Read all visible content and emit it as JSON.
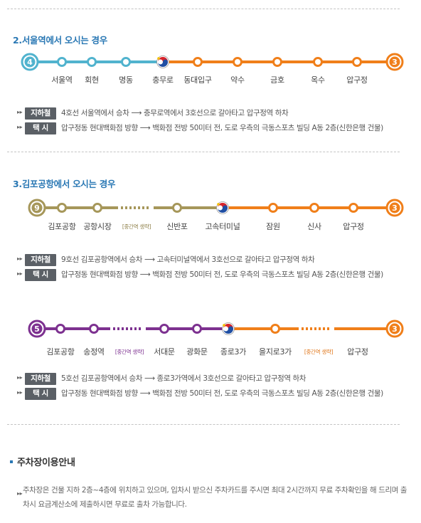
{
  "sections": [
    {
      "title": "2.서울역에서 오시는 경우",
      "start_badge": "4",
      "end_badge": "3",
      "line_colors": [
        "#51b3ce",
        "#f07f1a"
      ],
      "stations": [
        "서울역",
        "회현",
        "명동",
        "충무로",
        "동대입구",
        "약수",
        "금호",
        "옥수",
        "압구정"
      ],
      "mid_labels": [],
      "info": [
        {
          "label": "지하철",
          "text": "4호선 서울역에서 승차 ⟶ 충무로역에서 3호선으로 갈아타고 압구정역 하차"
        },
        {
          "label": "택  시",
          "text": "압구정동 현대백화점 방향 ⟶ 백화점 전방 50미터 전, 도로 우측의 극동스포츠 빌딩 A동 2층(신한은행 건물)"
        }
      ]
    },
    {
      "title": "3.김포공항에서 오시는 경우",
      "start_badge": "9",
      "end_badge": "3",
      "line_colors": [
        "#a6975a",
        "#f07f1a"
      ],
      "stations": [
        "김포공항",
        "공항시장",
        "신반포",
        "고속터미널",
        "잠원",
        "신사",
        "압구정"
      ],
      "mid_labels": [
        "[중간역 생략]"
      ],
      "info": [
        {
          "label": "지하철",
          "text": "9호선 김포공항역에서 승차 ⟶ 고속터미널역에서 3호선으로 갈아타고 압구정역 하차"
        },
        {
          "label": "택  시",
          "text": "압구정동 현대백화점 방향 ⟶ 백화점 전방 50미터 전, 도로 우측의 극동스포츠 빌딩 A동 2층(신한은행 건물)"
        }
      ]
    },
    {
      "title": "",
      "start_badge": "5",
      "end_badge": "3",
      "line_colors": [
        "#7d3190",
        "#f07f1a"
      ],
      "stations": [
        "김포공항",
        "송정역",
        "서대문",
        "광화문",
        "종로3가",
        "을지로3가",
        "압구정"
      ],
      "mid_labels": [
        "[중간역 생략]",
        "[중간역 생략]"
      ],
      "info": [
        {
          "label": "지하철",
          "text": "5호선 김포공항역에서 승차 ⟶ 종로3가역에서 3호선으로 갈아타고 압구정역 하차"
        },
        {
          "label": "택  시",
          "text": "압구정동 현대백화점 방향 ⟶ 백화점 전방 50미터 전, 도로 우측의 극동스포츠 빌딩 A동 2층(신한은행 건물)"
        }
      ]
    }
  ],
  "parking": {
    "title": "주차장이용안내",
    "text": "주차장은 건물 지하 2층~4층에 위치하고 있으며, 입차시 받으신 주차카드를 주시면 최대 2시간까지 무료 주차확인을 해 드리며 출차시 요금계산소에 제출하시면 무료로 출차 가능합니다."
  },
  "icons": {
    "bullet": "double-triangle-bullet-icon",
    "transfer": "taegeuk-transfer-icon"
  }
}
